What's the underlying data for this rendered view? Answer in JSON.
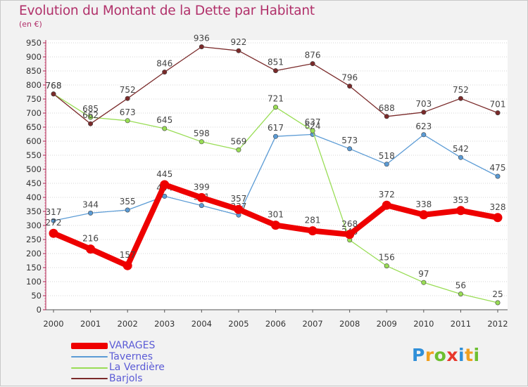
{
  "header": {
    "title": "Evolution du Montant de la Dette par Habitant",
    "subtitle": "(en €)"
  },
  "logo": {
    "text": "Proxiti",
    "letters": [
      {
        "ch": "P",
        "color": "#2f8fd8"
      },
      {
        "ch": "r",
        "color": "#f0a020"
      },
      {
        "ch": "o",
        "color": "#6cbf30"
      },
      {
        "ch": "x",
        "color": "#e8382c"
      },
      {
        "ch": "i",
        "color": "#2f8fd8"
      },
      {
        "ch": "t",
        "color": "#f0a020"
      },
      {
        "ch": "i",
        "color": "#6cbf30"
      }
    ]
  },
  "chart_data": {
    "type": "line",
    "title": "Evolution du Montant de la Dette par Habitant",
    "subtitle": "(en €)",
    "x": [
      "2000",
      "2001",
      "2002",
      "2003",
      "2004",
      "2005",
      "2006",
      "2007",
      "2008",
      "2009",
      "2010",
      "2011",
      "2012"
    ],
    "ylim": [
      0,
      950
    ],
    "yticks": [
      0,
      50,
      100,
      150,
      200,
      250,
      300,
      350,
      400,
      450,
      500,
      550,
      600,
      650,
      700,
      750,
      800,
      850,
      900,
      950
    ],
    "grid": "horizontal dotted",
    "legend_position": "bottom-left",
    "series": [
      {
        "name": "VARAGES",
        "color": "#ee0000",
        "emphasis": true,
        "values": [
          272,
          216,
          157,
          445,
          399,
          357,
          301,
          281,
          268,
          372,
          338,
          353,
          328
        ]
      },
      {
        "name": "Tavernes",
        "color": "#5b9bd5",
        "emphasis": false,
        "values": [
          317,
          344,
          355,
          404,
          371,
          337,
          617,
          624,
          573,
          518,
          623,
          542,
          475
        ]
      },
      {
        "name": "La Verdière",
        "color": "#99dd55",
        "emphasis": false,
        "values": [
          768,
          685,
          673,
          645,
          598,
          569,
          721,
          637,
          248,
          156,
          97,
          56,
          25
        ]
      },
      {
        "name": "Barjols",
        "color": "#7a2a2a",
        "emphasis": false,
        "values": [
          768,
          662,
          752,
          846,
          936,
          922,
          851,
          876,
          796,
          688,
          703,
          752,
          701
        ]
      }
    ]
  }
}
